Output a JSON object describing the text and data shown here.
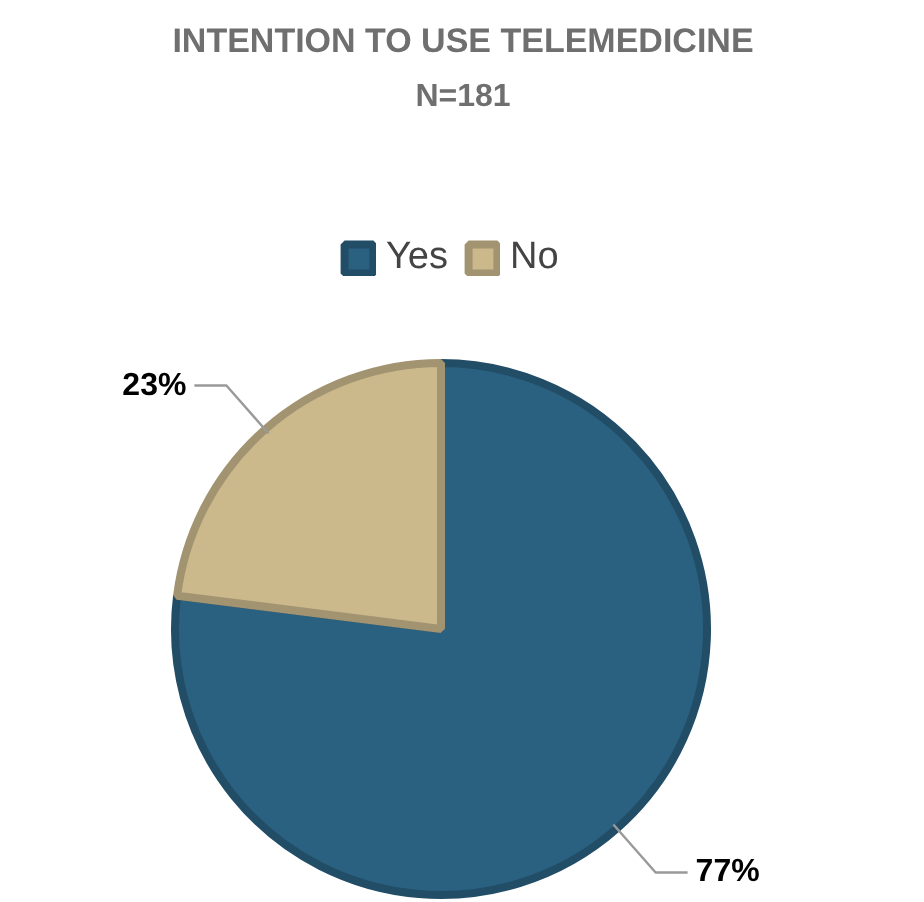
{
  "chart_data": {
    "type": "pie",
    "title": "INTENTION TO USE TELEMEDICINE",
    "subtitle": "N=181",
    "categories": [
      "Yes",
      "No"
    ],
    "values": [
      77,
      23
    ],
    "colors": [
      "#2b6180",
      "#cbb98c"
    ],
    "value_labels": [
      "77%",
      "23%"
    ],
    "legend": "top"
  }
}
